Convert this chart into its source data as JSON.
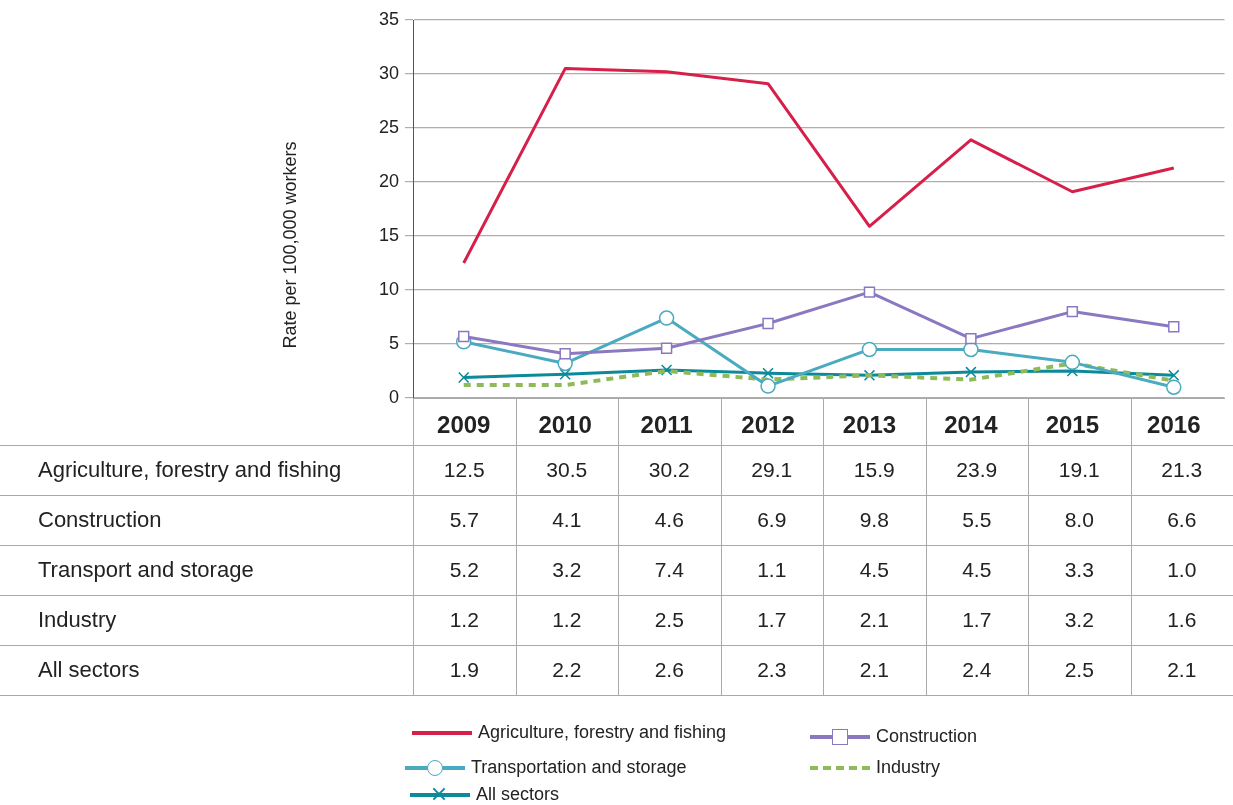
{
  "chart_data": {
    "type": "line",
    "ylabel": "Rate per 100,000 workers",
    "categories": [
      "2009",
      "2010",
      "2011",
      "2012",
      "2013",
      "2014",
      "2015",
      "2016"
    ],
    "ylim": [
      0,
      35
    ],
    "yticks": [
      0,
      5,
      10,
      15,
      20,
      25,
      30,
      35
    ],
    "grid": "y",
    "legend": "bottom",
    "series": [
      {
        "name": "Agriculture, forestry and fishing",
        "color": "#d6204a",
        "marker": "none",
        "line_style": "solid",
        "values": [
          12.5,
          30.5,
          30.2,
          29.1,
          15.9,
          23.9,
          19.1,
          21.3
        ],
        "value_labels": [
          "12.5",
          "30.5",
          "30.2",
          "29.1",
          "15.9",
          "23.9",
          "19.1",
          "21.3"
        ]
      },
      {
        "name": "Construction",
        "color": "#8a78c0",
        "marker": "square",
        "line_style": "solid",
        "values": [
          5.7,
          4.1,
          4.6,
          6.9,
          9.8,
          5.5,
          8.0,
          6.6
        ],
        "value_labels": [
          "5.7",
          "4.1",
          "4.6",
          "6.9",
          "9.8",
          "5.5",
          "8.0",
          "6.6"
        ]
      },
      {
        "name": "Transportation and storage",
        "color": "#4aabc0",
        "marker": "circle",
        "line_style": "solid",
        "values": [
          5.2,
          3.2,
          7.4,
          1.1,
          4.5,
          4.5,
          3.3,
          1.0
        ],
        "value_labels": [
          "5.2",
          "3.2",
          "7.4",
          "1.1",
          "4.5",
          "4.5",
          "3.3",
          "1.0"
        ]
      },
      {
        "name": "Industry",
        "color": "#8fba5a",
        "marker": "none",
        "line_style": "dashed",
        "values": [
          1.2,
          1.2,
          2.5,
          1.7,
          2.1,
          1.7,
          3.2,
          1.6
        ],
        "value_labels": [
          "1.2",
          "1.2",
          "2.5",
          "1.7",
          "2.1",
          "1.7",
          "3.2",
          "1.6"
        ]
      },
      {
        "name": "All sectors",
        "color": "#0d8a9a",
        "marker": "cross",
        "line_style": "solid",
        "values": [
          1.9,
          2.2,
          2.6,
          2.3,
          2.1,
          2.4,
          2.5,
          2.1
        ],
        "value_labels": [
          "1.9",
          "2.2",
          "2.6",
          "2.3",
          "2.1",
          "2.4",
          "2.5",
          "2.1"
        ]
      }
    ],
    "annotations": [
      "Agriculture, forestry and fishing",
      "Construction",
      "Transport and storage",
      "Industry",
      "All sectors"
    ]
  }
}
